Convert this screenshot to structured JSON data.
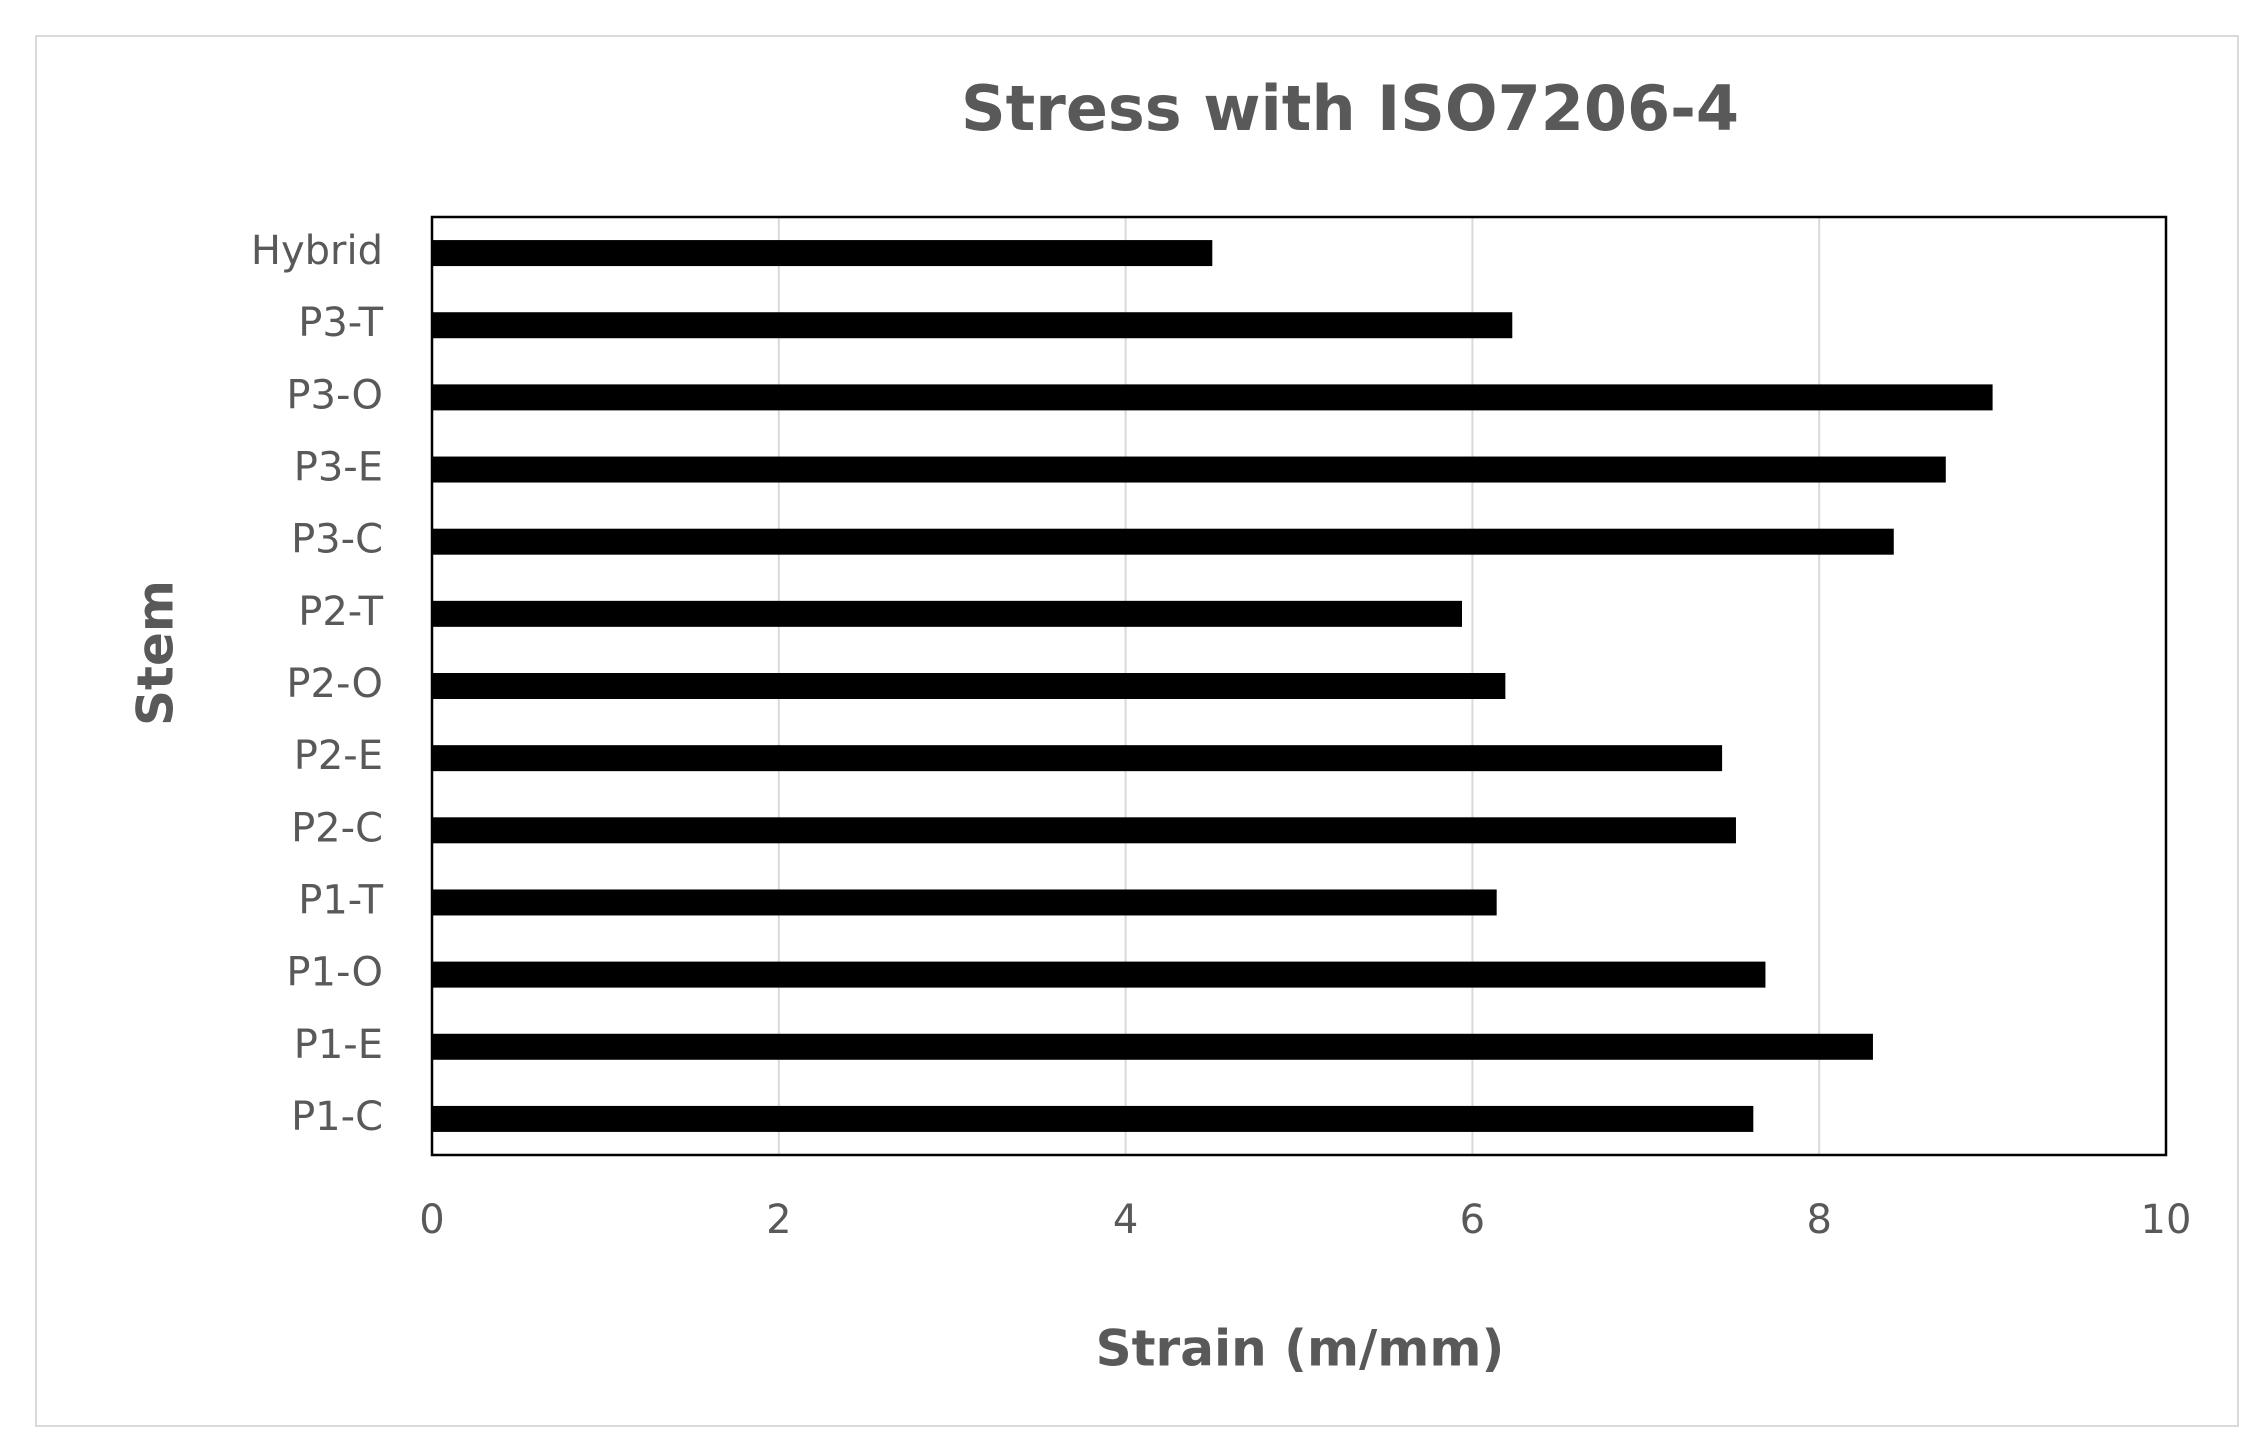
{
  "chart_data": {
    "type": "bar",
    "orientation": "horizontal",
    "title": "Stress with ISO7206-4",
    "x_label": "Strain (m/mm)",
    "y_label": "Stem",
    "categories": [
      "P1-C",
      "P1-E",
      "P1-O",
      "P1-T",
      "P2-C",
      "P2-E",
      "P2-O",
      "P2-T",
      "P3-C",
      "P3-E",
      "P3-O",
      "P3-T",
      "Hybrid"
    ],
    "values": [
      7.62,
      8.31,
      7.69,
      6.14,
      7.52,
      7.44,
      6.19,
      5.94,
      8.43,
      8.73,
      9.0,
      6.23,
      4.5
    ],
    "color": "#000000",
    "xlim": [
      0,
      10
    ],
    "xticks": [
      0,
      2,
      4,
      6,
      8,
      10
    ],
    "grid": true
  }
}
